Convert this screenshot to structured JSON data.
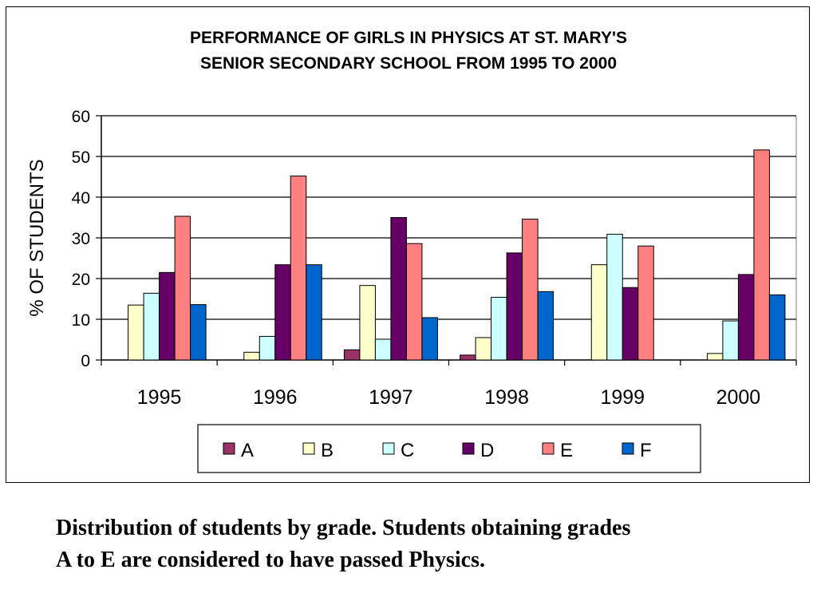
{
  "chart_data": {
    "type": "bar",
    "title": [
      "PERFORMANCE OF GIRLS IN PHYSICS AT ST. MARY'S",
      "SENIOR SECONDARY SCHOOL FROM 1995 TO 2000"
    ],
    "xlabel": "",
    "ylabel": "% OF STUDENTS",
    "ylim": [
      0,
      60
    ],
    "yticks": [
      0,
      10,
      20,
      30,
      40,
      50,
      60
    ],
    "grid": true,
    "legend_position": "bottom",
    "categories": [
      "1995",
      "1996",
      "1997",
      "1998",
      "1999",
      "2000"
    ],
    "series": [
      {
        "name": "A",
        "color": "#993366",
        "values": [
          0,
          0,
          2.5,
          1.2,
          0,
          0
        ]
      },
      {
        "name": "B",
        "color": "#FFFFCC",
        "values": [
          13.5,
          1.9,
          18.3,
          5.5,
          23.4,
          1.6
        ]
      },
      {
        "name": "C",
        "color": "#CCFFFF",
        "values": [
          16.4,
          5.8,
          5.1,
          15.4,
          30.9,
          9.6
        ]
      },
      {
        "name": "D",
        "color": "#660066",
        "values": [
          21.5,
          23.4,
          35,
          26.3,
          17.8,
          21
        ]
      },
      {
        "name": "E",
        "color": "#FF8080",
        "values": [
          35.3,
          45.2,
          28.6,
          34.6,
          28,
          51.6
        ]
      },
      {
        "name": "F",
        "color": "#0066CC",
        "values": [
          13.6,
          23.4,
          10.4,
          16.8,
          0,
          16
        ]
      }
    ]
  },
  "caption": {
    "line1": "Distribution of students by grade. Students obtaining grades",
    "line2": "A to E are considered to have passed Physics."
  }
}
